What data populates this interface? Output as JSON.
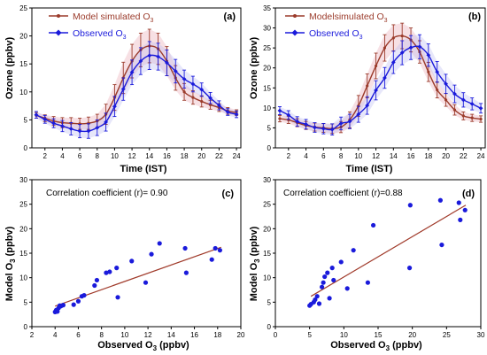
{
  "colors": {
    "model": "#9B3B2B",
    "observed": "#1A1ADB",
    "fit": "#A03A2A",
    "points": "#1A1ADB"
  },
  "chart_data": [
    {
      "type": "line",
      "panel_label": "(a)",
      "xlabel": "Time (IST)",
      "ylabel": "Ozone (ppbv)",
      "xlim": [
        0.5,
        24.5
      ],
      "ylim": [
        0,
        25
      ],
      "xticks": [
        2,
        4,
        6,
        8,
        10,
        12,
        14,
        16,
        18,
        20,
        22,
        24
      ],
      "yticks": [
        0,
        5,
        10,
        15,
        20,
        25
      ],
      "legend": "top-left",
      "x": [
        1,
        2,
        3,
        4,
        5,
        6,
        7,
        8,
        9,
        10,
        11,
        12,
        13,
        14,
        15,
        16,
        17,
        18,
        19,
        20,
        21,
        22,
        23,
        24
      ],
      "series": [
        {
          "name": "Model simulated O3",
          "marker": "dot",
          "values": [
            5.8,
            5.3,
            4.8,
            4.5,
            4.4,
            4.3,
            4.4,
            4.8,
            6.0,
            9.0,
            12.5,
            15.5,
            17.5,
            18.2,
            17.7,
            15.5,
            12.5,
            10.0,
            9.0,
            8.3,
            7.7,
            7.2,
            6.6,
            6.3
          ],
          "errors": [
            0.5,
            0.6,
            0.8,
            0.9,
            1.0,
            1.0,
            1.1,
            1.2,
            1.8,
            2.3,
            2.8,
            3.0,
            3.0,
            3.0,
            2.8,
            2.6,
            2.2,
            1.5,
            1.2,
            1.0,
            0.8,
            0.7,
            0.6,
            0.5
          ]
        },
        {
          "name": "Observed O3",
          "marker": "diamond",
          "values": [
            5.9,
            5.1,
            4.4,
            3.9,
            3.4,
            3.0,
            3.0,
            3.6,
            4.6,
            7.4,
            10.5,
            13.5,
            15.5,
            16.5,
            16.3,
            15.2,
            13.7,
            12.3,
            11.4,
            10.4,
            8.9,
            7.6,
            6.4,
            6.0
          ],
          "errors": [
            0.6,
            0.7,
            0.8,
            1.0,
            1.1,
            1.2,
            1.3,
            1.4,
            1.6,
            1.8,
            2.0,
            2.2,
            2.4,
            2.5,
            2.4,
            2.3,
            2.1,
            1.6,
            1.4,
            1.2,
            1.0,
            0.8,
            0.6,
            0.6
          ]
        }
      ]
    },
    {
      "type": "line",
      "panel_label": "(b)",
      "xlabel": "Time (IST)",
      "ylabel": "Ozone (ppbv)",
      "xlim": [
        0.5,
        24.5
      ],
      "ylim": [
        0,
        35
      ],
      "xticks": [
        2,
        4,
        6,
        8,
        10,
        12,
        14,
        16,
        18,
        20,
        22,
        24
      ],
      "yticks": [
        0,
        5,
        10,
        15,
        20,
        25,
        30,
        35
      ],
      "legend": "top-left",
      "x": [
        1,
        2,
        3,
        4,
        5,
        6,
        7,
        8,
        9,
        10,
        11,
        12,
        13,
        14,
        15,
        16,
        17,
        18,
        19,
        20,
        21,
        22,
        23,
        24
      ],
      "series": [
        {
          "name": "Modelsimulated O3",
          "marker": "dot",
          "values": [
            7.3,
            7.0,
            6.3,
            5.6,
            5.2,
            5.0,
            4.8,
            5.2,
            7.0,
            10.5,
            15.5,
            20.5,
            25.0,
            27.5,
            28.0,
            27.0,
            24.0,
            19.0,
            14.5,
            12.0,
            9.5,
            8.0,
            7.5,
            7.2
          ],
          "errors": [
            0.8,
            0.9,
            1.0,
            1.0,
            1.0,
            1.1,
            1.2,
            1.4,
            2.0,
            2.6,
            3.0,
            3.2,
            3.3,
            3.3,
            3.2,
            3.0,
            2.8,
            2.4,
            2.0,
            1.6,
            1.3,
            1.0,
            0.9,
            0.8
          ]
        },
        {
          "name": "Observed O3",
          "marker": "diamond",
          "values": [
            9.3,
            8.2,
            6.6,
            5.9,
            5.1,
            4.8,
            4.6,
            6.1,
            6.6,
            8.4,
            10.6,
            14.4,
            17.5,
            21.4,
            23.8,
            25.1,
            25.3,
            23.2,
            19.0,
            16.0,
            13.5,
            12.0,
            11.0,
            9.9
          ],
          "errors": [
            1.0,
            1.1,
            1.2,
            1.2,
            1.2,
            1.3,
            1.4,
            1.6,
            1.8,
            2.0,
            2.2,
            2.4,
            2.6,
            2.8,
            3.0,
            3.0,
            3.0,
            2.8,
            2.6,
            2.4,
            2.2,
            1.8,
            1.5,
            1.2
          ]
        }
      ]
    },
    {
      "type": "scatter",
      "panel_label": "(c)",
      "annotation": "Correlation coefficient (r)= 0.90",
      "xlabel": "Observed O3 (ppbv)",
      "ylabel": "Model O3 (ppbv)",
      "xlim": [
        2,
        20
      ],
      "ylim": [
        0,
        30
      ],
      "xticks": [
        2,
        4,
        6,
        8,
        10,
        12,
        14,
        16,
        18,
        20
      ],
      "yticks": [
        0,
        5,
        10,
        15,
        20,
        25,
        30
      ],
      "fit_line": {
        "x": [
          4.0,
          18.3
        ],
        "y": [
          4.2,
          16.2
        ]
      },
      "points": {
        "x": [
          4.0,
          4.1,
          4.2,
          4.3,
          4.4,
          4.5,
          4.7,
          5.6,
          6.0,
          6.3,
          6.5,
          7.4,
          7.6,
          8.4,
          8.7,
          9.3,
          9.4,
          10.6,
          11.8,
          12.3,
          13.0,
          15.2,
          15.3,
          17.5,
          17.8,
          18.2
        ],
        "y": [
          3.0,
          3.4,
          3.1,
          3.8,
          4.3,
          4.2,
          4.4,
          4.5,
          5.2,
          6.2,
          6.4,
          8.4,
          9.5,
          11.0,
          11.2,
          12.0,
          6.0,
          13.4,
          9.0,
          14.8,
          17.0,
          16.0,
          11.0,
          13.7,
          16.0,
          15.6
        ]
      }
    },
    {
      "type": "scatter",
      "panel_label": "(d)",
      "annotation": "Correlation coefficient (r)=0.88",
      "xlabel": "Observed O3 (ppbv)",
      "ylabel": "Model O3 (ppbv)",
      "xlim": [
        0,
        30
      ],
      "ylim": [
        0,
        30
      ],
      "xticks": [
        0,
        5,
        10,
        15,
        20,
        25,
        30
      ],
      "yticks": [
        0,
        5,
        10,
        15,
        20,
        25,
        30
      ],
      "fit_line": {
        "x": [
          5.2,
          27.8
        ],
        "y": [
          6.2,
          24.8
        ]
      },
      "points": {
        "x": [
          5.0,
          5.2,
          5.6,
          5.8,
          6.1,
          6.4,
          6.8,
          7.0,
          7.2,
          7.6,
          7.9,
          8.3,
          8.5,
          9.6,
          10.5,
          11.4,
          13.5,
          14.3,
          19.6,
          19.7,
          24.1,
          24.3,
          26.8,
          27.0,
          27.7
        ],
        "y": [
          4.3,
          4.6,
          5.0,
          5.5,
          6.2,
          4.7,
          8.1,
          9.0,
          10.2,
          11.0,
          5.8,
          12.0,
          9.5,
          13.2,
          7.8,
          15.6,
          9.0,
          20.7,
          12.0,
          24.8,
          25.8,
          16.7,
          25.3,
          21.8,
          23.8
        ]
      }
    }
  ],
  "legend": {
    "a": {
      "model": "Model simulated O",
      "observed": "Observed O",
      "sub": "3"
    },
    "b": {
      "model": "Modelsimulated O",
      "observed": "Observed O",
      "sub": "3"
    }
  },
  "axis_text": {
    "time": "Time (IST)",
    "ozone": "Ozone (ppbv)",
    "model_o3_prefix": "Model O",
    "model_o3_suffix": " (ppbv)",
    "obs_o3_prefix": "Observed O",
    "obs_o3_suffix": " (ppbv)",
    "sub": "3"
  }
}
